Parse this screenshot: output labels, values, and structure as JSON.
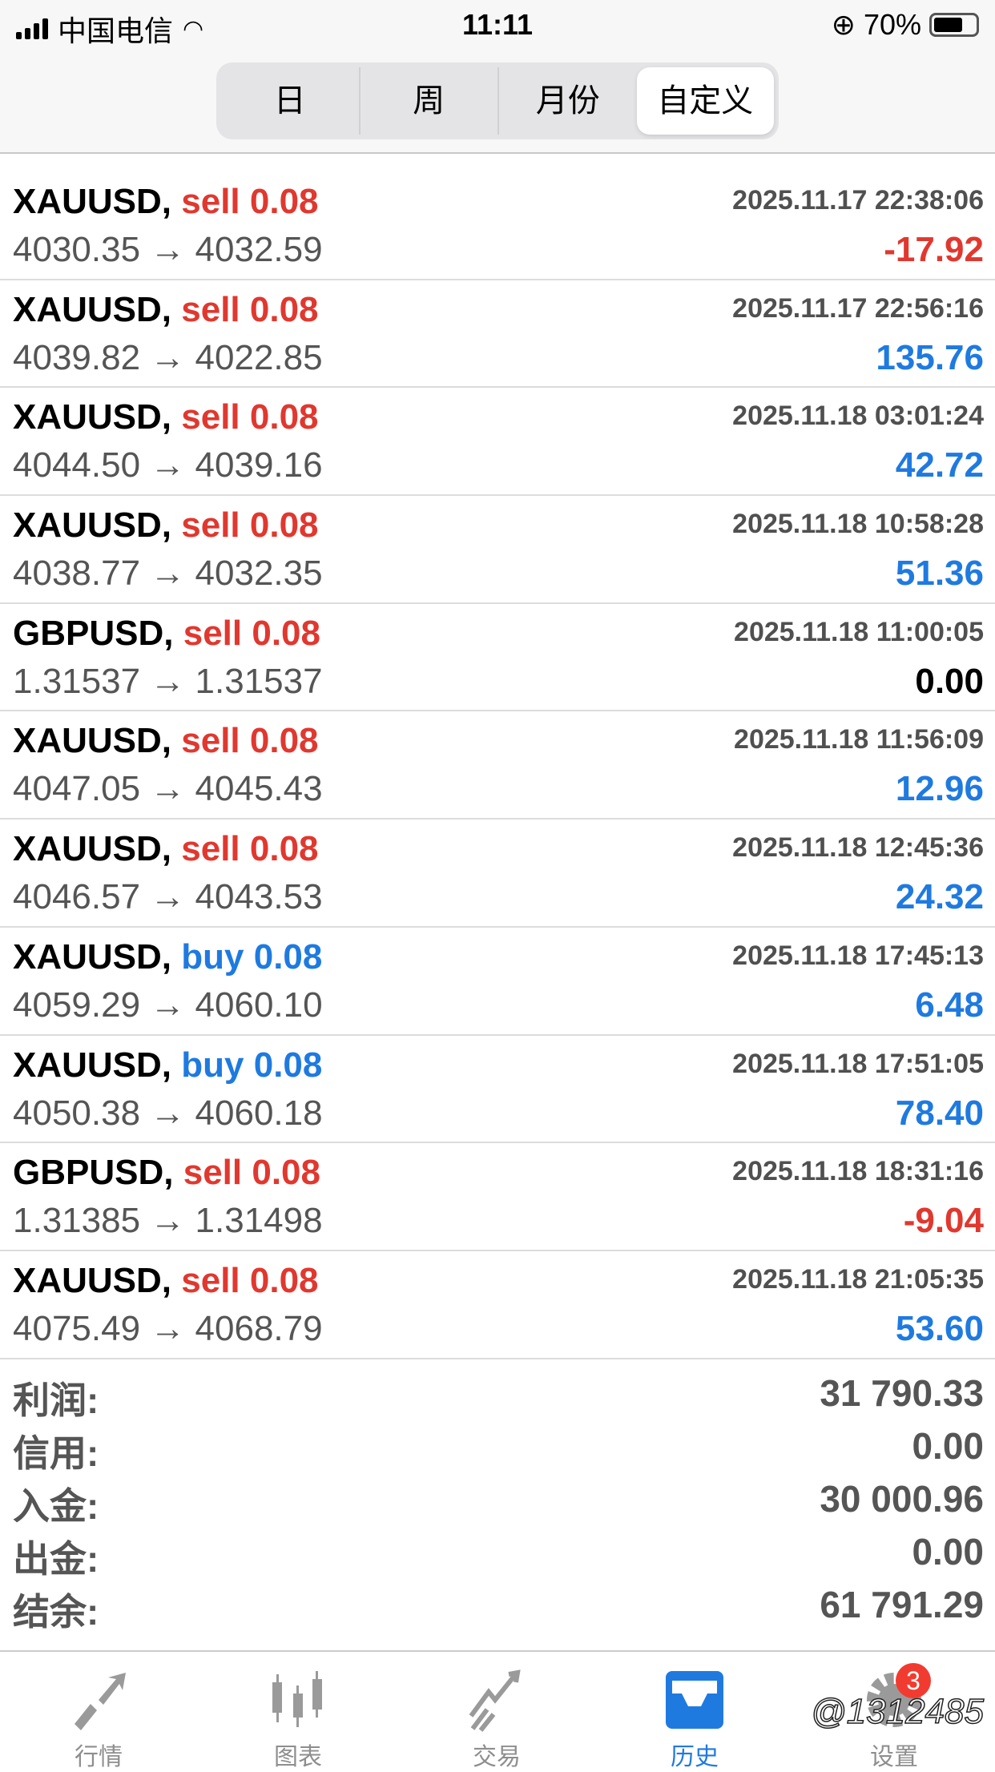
{
  "status_bar": {
    "carrier": "中国电信",
    "time": "11:11",
    "battery": "70%",
    "battery_level": 0.7
  },
  "segments": {
    "items": [
      "日",
      "周",
      "月份",
      "自定义"
    ],
    "selected": "自定义"
  },
  "colors": {
    "sell": "#e0382f",
    "buy": "#1f7ae0",
    "profit": "#1f7ae0",
    "loss": "#e0382f",
    "zero": "#000000"
  },
  "trades": [
    {
      "symbol": "XAUUSD,",
      "type": "sell",
      "volume": "0.08",
      "time": "2025.11.17 22:38:06",
      "open": "4030.35",
      "close": "4032.59",
      "profit": "-17.92",
      "sign": "loss"
    },
    {
      "symbol": "XAUUSD,",
      "type": "sell",
      "volume": "0.08",
      "time": "2025.11.17 22:56:16",
      "open": "4039.82",
      "close": "4022.85",
      "profit": "135.76",
      "sign": "profit"
    },
    {
      "symbol": "XAUUSD,",
      "type": "sell",
      "volume": "0.08",
      "time": "2025.11.18 03:01:24",
      "open": "4044.50",
      "close": "4039.16",
      "profit": "42.72",
      "sign": "profit"
    },
    {
      "symbol": "XAUUSD,",
      "type": "sell",
      "volume": "0.08",
      "time": "2025.11.18 10:58:28",
      "open": "4038.77",
      "close": "4032.35",
      "profit": "51.36",
      "sign": "profit"
    },
    {
      "symbol": "GBPUSD,",
      "type": "sell",
      "volume": "0.08",
      "time": "2025.11.18 11:00:05",
      "open": "1.31537",
      "close": "1.31537",
      "profit": "0.00",
      "sign": "zero"
    },
    {
      "symbol": "XAUUSD,",
      "type": "sell",
      "volume": "0.08",
      "time": "2025.11.18 11:56:09",
      "open": "4047.05",
      "close": "4045.43",
      "profit": "12.96",
      "sign": "profit"
    },
    {
      "symbol": "XAUUSD,",
      "type": "sell",
      "volume": "0.08",
      "time": "2025.11.18 12:45:36",
      "open": "4046.57",
      "close": "4043.53",
      "profit": "24.32",
      "sign": "profit"
    },
    {
      "symbol": "XAUUSD,",
      "type": "buy",
      "volume": "0.08",
      "time": "2025.11.18 17:45:13",
      "open": "4059.29",
      "close": "4060.10",
      "profit": "6.48",
      "sign": "profit"
    },
    {
      "symbol": "XAUUSD,",
      "type": "buy",
      "volume": "0.08",
      "time": "2025.11.18 17:51:05",
      "open": "4050.38",
      "close": "4060.18",
      "profit": "78.40",
      "sign": "profit"
    },
    {
      "symbol": "GBPUSD,",
      "type": "sell",
      "volume": "0.08",
      "time": "2025.11.18 18:31:16",
      "open": "1.31385",
      "close": "1.31498",
      "profit": "-9.04",
      "sign": "loss"
    },
    {
      "symbol": "XAUUSD,",
      "type": "sell",
      "volume": "0.08",
      "time": "2025.11.18 21:05:35",
      "open": "4075.49",
      "close": "4068.79",
      "profit": "53.60",
      "sign": "profit"
    }
  ],
  "arrow": "→",
  "summary": [
    {
      "label": "利润:",
      "value": "31 790.33"
    },
    {
      "label": "信用:",
      "value": "0.00"
    },
    {
      "label": "入金:",
      "value": "30 000.96"
    },
    {
      "label": "出金:",
      "value": "0.00"
    },
    {
      "label": "结余:",
      "value": "61 791.29"
    }
  ],
  "nav": {
    "items": [
      {
        "label": "行情",
        "icon": "quotes-arrows-icon"
      },
      {
        "label": "图表",
        "icon": "candlestick-icon"
      },
      {
        "label": "交易",
        "icon": "trade-trend-icon"
      },
      {
        "label": "历史",
        "icon": "history-inbox-icon"
      },
      {
        "label": "设置",
        "icon": "gear-icon"
      }
    ],
    "active": "历史",
    "settings_badge": "3"
  },
  "watermark": "@1312485"
}
